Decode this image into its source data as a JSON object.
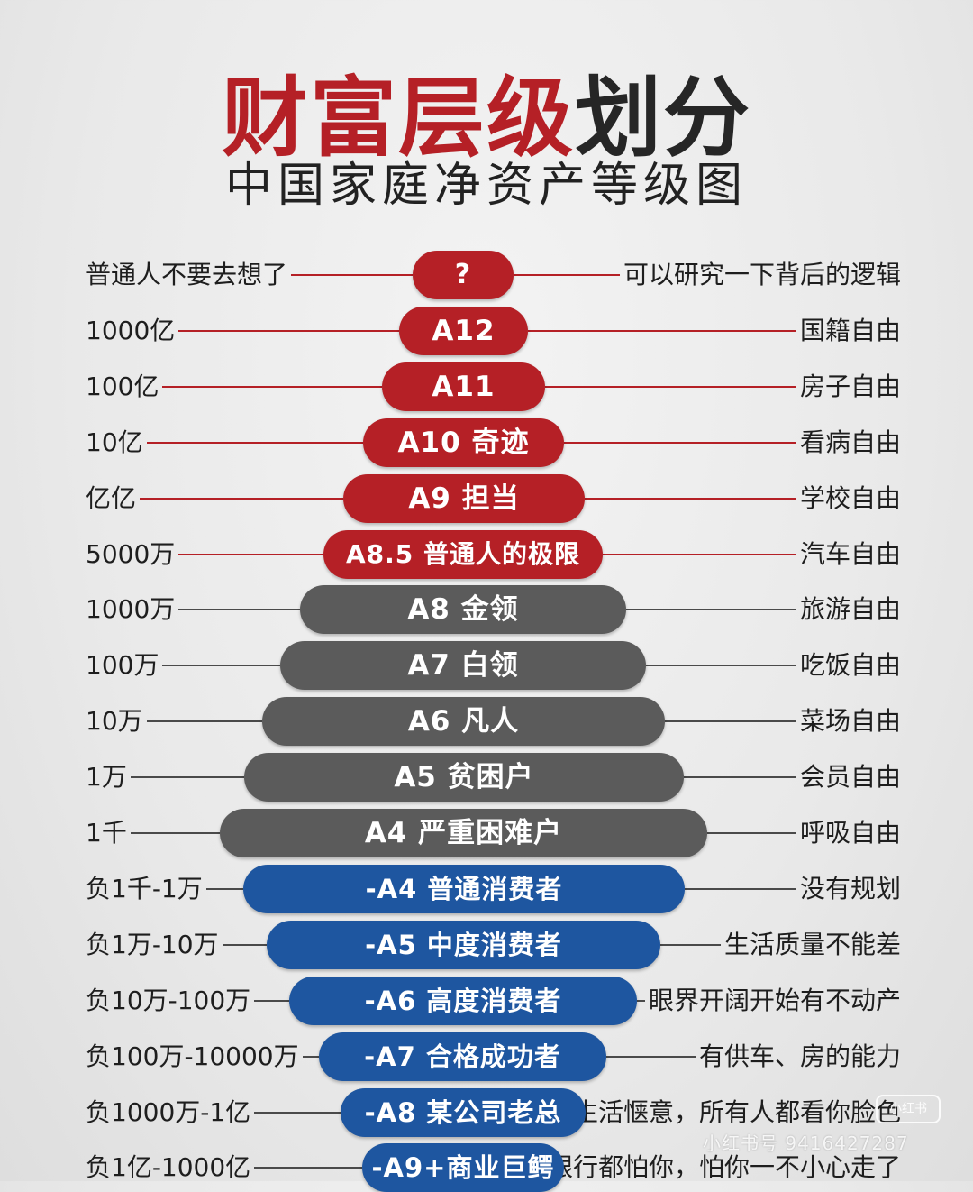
{
  "title": {
    "part1": "财富层级",
    "part2": "划分"
  },
  "subtitle": "中国家庭净资产等级图",
  "colors": {
    "red": "#b52026",
    "gray": "#5b5b5b",
    "blue": "#1e56a0",
    "line_gray": "#4a4a4a"
  },
  "tiers": [
    {
      "left": "普通人不要去想了",
      "label": "?",
      "right": "可以研究一下背后的逻辑",
      "color": "red"
    },
    {
      "left": "1000亿",
      "label": "A12",
      "right": "国籍自由",
      "color": "red"
    },
    {
      "left": "100亿",
      "label": "A11",
      "right": "房子自由",
      "color": "red"
    },
    {
      "left": "10亿",
      "label": "A10  奇迹",
      "right": "看病自由",
      "color": "red"
    },
    {
      "left": "亿亿",
      "label": "A9  担当",
      "right": "学校自由",
      "color": "red"
    },
    {
      "left": "5000万",
      "label": "A8.5  普通人的极限",
      "right": "汽车自由",
      "color": "red"
    },
    {
      "left": "1000万",
      "label": "A8  金领",
      "right": "旅游自由",
      "color": "gray"
    },
    {
      "left": "100万",
      "label": "A7  白领",
      "right": "吃饭自由",
      "color": "gray"
    },
    {
      "left": "10万",
      "label": "A6  凡人",
      "right": "菜场自由",
      "color": "gray"
    },
    {
      "left": "1万",
      "label": "A5  贫困户",
      "right": "会员自由",
      "color": "gray"
    },
    {
      "left": "1千",
      "label": "A4  严重困难户",
      "right": "呼吸自由",
      "color": "gray"
    },
    {
      "left": "负1千-1万",
      "label": "-A4 普通消费者",
      "right": "没有规划",
      "color": "blue"
    },
    {
      "left": "负1万-10万",
      "label": "-A5 中度消费者",
      "right": "生活质量不能差",
      "color": "blue"
    },
    {
      "left": "负10万-100万",
      "label": "-A6 高度消费者",
      "right": "眼界开阔开始有不动产",
      "color": "blue"
    },
    {
      "left": "负100万-10000万",
      "label": "-A7 合格成功者",
      "right": "有供车、房的能力",
      "color": "blue"
    },
    {
      "left": "负1000万-1亿",
      "label": "-A8 某公司老总",
      "right": "生活惬意，所有人都看你脸色",
      "color": "blue"
    },
    {
      "left": "负1亿-1000亿",
      "label": "-A9+商业巨鳄",
      "right": "银行都怕你，怕你一不小心走了",
      "color": "blue"
    }
  ],
  "watermark": {
    "text": "小红书号 9416427287",
    "badge": "小红书"
  }
}
